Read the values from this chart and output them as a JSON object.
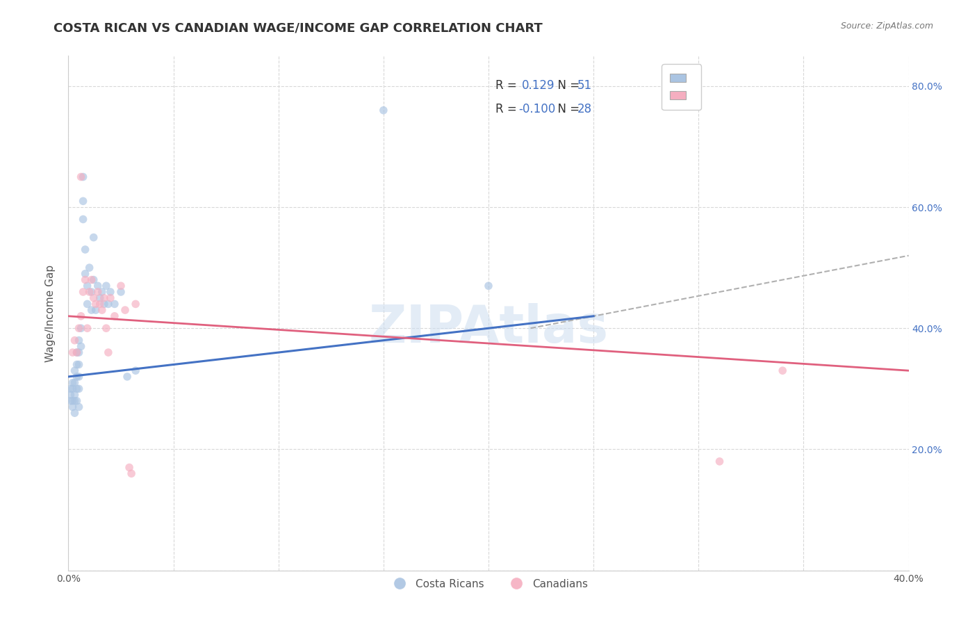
{
  "title": "COSTA RICAN VS CANADIAN WAGE/INCOME GAP CORRELATION CHART",
  "source": "Source: ZipAtlas.com",
  "ylabel": "Wage/Income Gap",
  "xlim": [
    0.0,
    0.4
  ],
  "ylim": [
    0.0,
    0.85
  ],
  "background_color": "#ffffff",
  "grid_color": "#d8d8d8",
  "blue_color": "#aac4e2",
  "pink_color": "#f5aec0",
  "blue_line_color": "#4472c4",
  "pink_line_color": "#e0607e",
  "dashed_line_color": "#b0b0b0",
  "legend_R1": "0.129",
  "legend_N1": "51",
  "legend_R2": "-0.100",
  "legend_N2": "28",
  "number_color": "#4472c4",
  "watermark": "ZIPAtlas",
  "marker_size": 70,
  "alpha": 0.65,
  "costa_rican_x": [
    0.001,
    0.001,
    0.001,
    0.002,
    0.002,
    0.002,
    0.002,
    0.003,
    0.003,
    0.003,
    0.003,
    0.003,
    0.004,
    0.004,
    0.004,
    0.004,
    0.004,
    0.005,
    0.005,
    0.005,
    0.005,
    0.005,
    0.005,
    0.006,
    0.006,
    0.007,
    0.007,
    0.007,
    0.008,
    0.008,
    0.009,
    0.009,
    0.01,
    0.011,
    0.011,
    0.012,
    0.012,
    0.013,
    0.014,
    0.015,
    0.016,
    0.017,
    0.018,
    0.019,
    0.02,
    0.022,
    0.025,
    0.028,
    0.032,
    0.15,
    0.2
  ],
  "costa_rican_y": [
    0.3,
    0.29,
    0.28,
    0.31,
    0.3,
    0.28,
    0.27,
    0.33,
    0.31,
    0.29,
    0.28,
    0.26,
    0.36,
    0.34,
    0.32,
    0.3,
    0.28,
    0.38,
    0.36,
    0.34,
    0.32,
    0.3,
    0.27,
    0.4,
    0.37,
    0.65,
    0.61,
    0.58,
    0.53,
    0.49,
    0.47,
    0.44,
    0.5,
    0.46,
    0.43,
    0.55,
    0.48,
    0.43,
    0.47,
    0.45,
    0.46,
    0.44,
    0.47,
    0.44,
    0.46,
    0.44,
    0.46,
    0.32,
    0.33,
    0.76,
    0.47
  ],
  "canadian_x": [
    0.002,
    0.003,
    0.004,
    0.005,
    0.006,
    0.006,
    0.007,
    0.008,
    0.009,
    0.01,
    0.011,
    0.012,
    0.013,
    0.014,
    0.015,
    0.016,
    0.017,
    0.018,
    0.019,
    0.02,
    0.022,
    0.025,
    0.027,
    0.029,
    0.03,
    0.032,
    0.31,
    0.34
  ],
  "canadian_y": [
    0.36,
    0.38,
    0.36,
    0.4,
    0.65,
    0.42,
    0.46,
    0.48,
    0.4,
    0.46,
    0.48,
    0.45,
    0.44,
    0.46,
    0.44,
    0.43,
    0.45,
    0.4,
    0.36,
    0.45,
    0.42,
    0.47,
    0.43,
    0.17,
    0.16,
    0.44,
    0.18,
    0.33
  ],
  "blue_line_x0": 0.0,
  "blue_line_x1": 0.25,
  "blue_line_y0": 0.32,
  "blue_line_y1": 0.42,
  "dashed_line_x0": 0.22,
  "dashed_line_x1": 0.4,
  "dashed_line_y0": 0.4,
  "dashed_line_y1": 0.52,
  "pink_line_x0": 0.0,
  "pink_line_x1": 0.4,
  "pink_line_y0": 0.42,
  "pink_line_y1": 0.33
}
